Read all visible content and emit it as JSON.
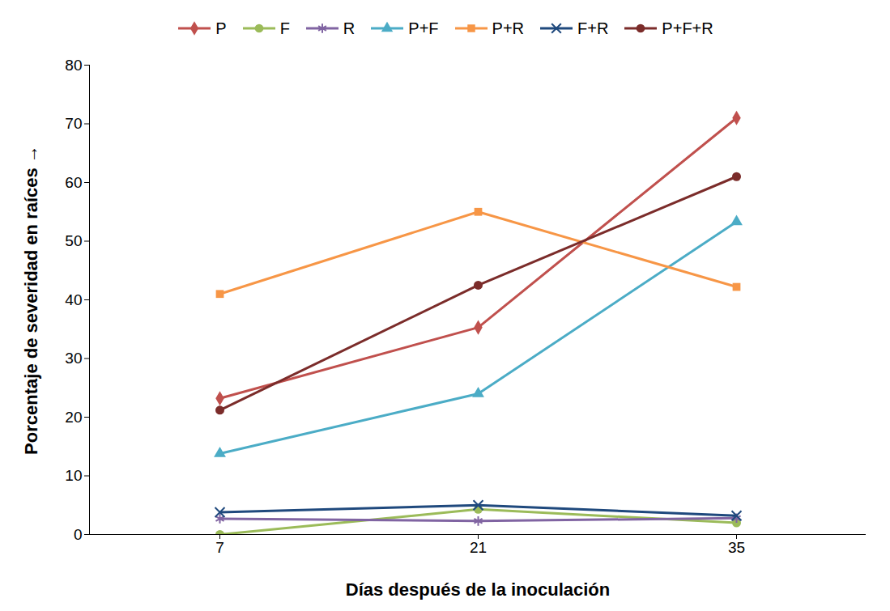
{
  "chart_data": {
    "type": "line",
    "x_label": "Días después de la inoculación",
    "y_label": "Porcentaje de severidad en raíces",
    "categories": [
      "7",
      "21",
      "35"
    ],
    "ylim": [
      0,
      80
    ],
    "yticks": [
      0,
      10,
      20,
      30,
      40,
      50,
      60,
      70,
      80
    ],
    "grid": false,
    "legend": "top",
    "series": [
      {
        "name": "P",
        "color": "#c0504d",
        "marker": "diamond",
        "values": [
          23.2,
          35.3,
          71
        ]
      },
      {
        "name": "F",
        "color": "#9bbb59",
        "marker": "circle",
        "values": [
          0,
          4.3,
          2
        ]
      },
      {
        "name": "R",
        "color": "#8064a2",
        "marker": "asterisk",
        "values": [
          2.7,
          2.3,
          2.8
        ]
      },
      {
        "name": "P+F",
        "color": "#4bacc6",
        "marker": "triangle",
        "values": [
          13.8,
          24,
          53.3
        ]
      },
      {
        "name": "P+R",
        "color": "#f79646",
        "marker": "square",
        "values": [
          41,
          55,
          42.2
        ]
      },
      {
        "name": "F+R",
        "color": "#1f497d",
        "marker": "times",
        "values": [
          3.8,
          5,
          3.2
        ]
      },
      {
        "name": "P+F+R",
        "color": "#7b2c2a",
        "marker": "circle",
        "values": [
          21.2,
          42.5,
          61
        ]
      }
    ]
  }
}
